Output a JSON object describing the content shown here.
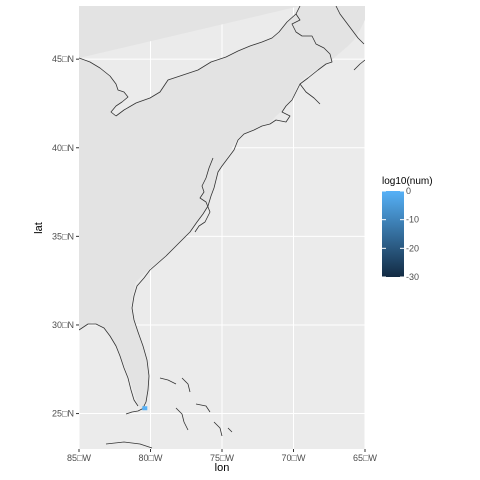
{
  "chart_data": {
    "type": "map",
    "xlabel": "lon",
    "ylabel": "lat",
    "xlim": [
      -85,
      -65
    ],
    "ylim": [
      23,
      48
    ],
    "x_ticks": [
      {
        "value": -85,
        "label": "85□W"
      },
      {
        "value": -80,
        "label": "80□W"
      },
      {
        "value": -75,
        "label": "75□W"
      },
      {
        "value": -70,
        "label": "70□W"
      },
      {
        "value": -65,
        "label": "65□W"
      }
    ],
    "y_ticks": [
      {
        "value": 25,
        "label": "25□N"
      },
      {
        "value": 30,
        "label": "30□N"
      },
      {
        "value": 35,
        "label": "35□N"
      },
      {
        "value": 40,
        "label": "40□N"
      },
      {
        "value": 45,
        "label": "45□N"
      }
    ],
    "legend": {
      "title": "log10(num)",
      "placement": "right",
      "range": [
        -30,
        0
      ],
      "ticks": [
        {
          "value": 0,
          "label": "0"
        },
        {
          "value": -10,
          "label": "-10"
        },
        {
          "value": -20,
          "label": "-20"
        },
        {
          "value": -30,
          "label": "-30"
        }
      ],
      "color_low": "#132b43",
      "color_high": "#56b1f7"
    },
    "highlight": {
      "lon": -80.4,
      "lat": 25.3,
      "value": 0
    },
    "grid": true,
    "colors": {
      "panel": "#ebebeb",
      "land": "#e3e3e3",
      "coast": "#333333",
      "grid": "#ffffff"
    }
  }
}
